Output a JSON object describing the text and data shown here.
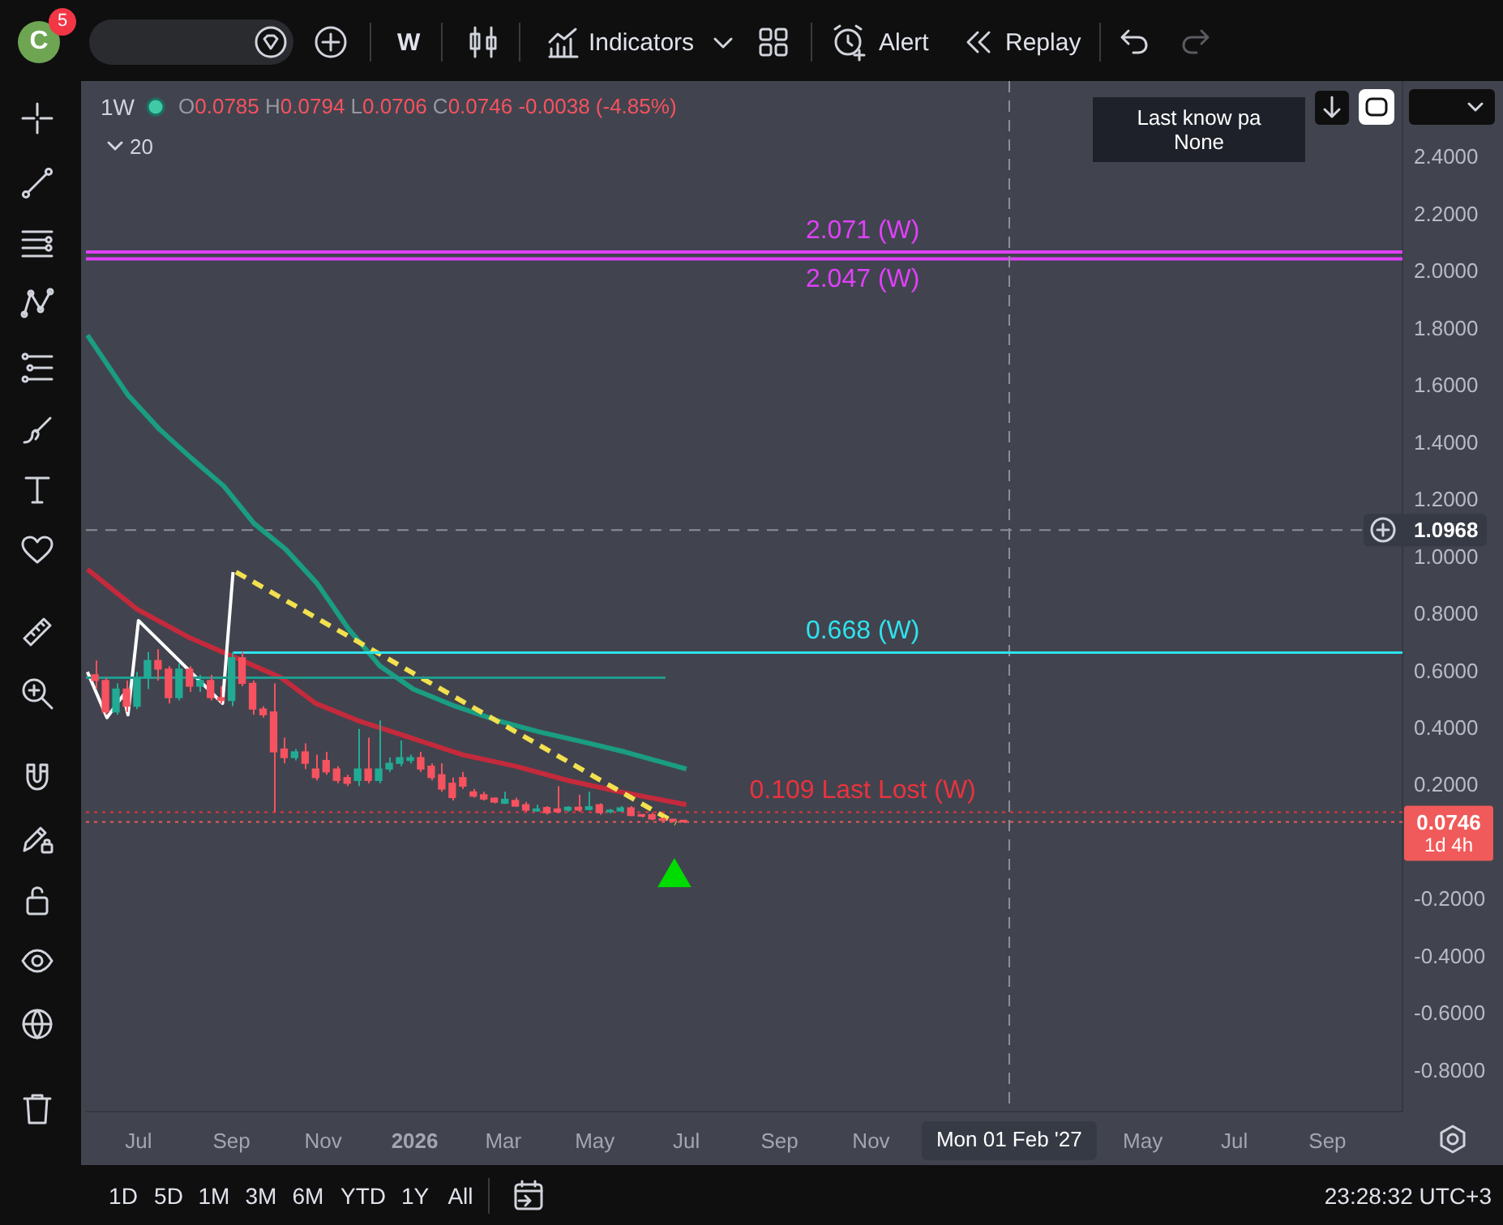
{
  "chart_data": {
    "type": "candlestick",
    "x": [
      "2025-06-02",
      "2025-06-09",
      "2025-06-16",
      "2025-06-23",
      "2025-06-30",
      "2025-07-07",
      "2025-07-14",
      "2025-07-21",
      "2025-07-28",
      "2025-08-04",
      "2025-08-11",
      "2025-08-18",
      "2025-08-25",
      "2025-09-01",
      "2025-09-08",
      "2025-09-15",
      "2025-09-22",
      "2025-09-29",
      "2025-10-06",
      "2025-10-13",
      "2025-10-20",
      "2025-10-27",
      "2025-11-03",
      "2025-11-10",
      "2025-11-17",
      "2025-11-24",
      "2025-12-01",
      "2025-12-08",
      "2025-12-15",
      "2025-12-22",
      "2025-12-29",
      "2026-01-05",
      "2026-01-12",
      "2026-01-19",
      "2026-01-26",
      "2026-02-02",
      "2026-02-09",
      "2026-02-16",
      "2026-02-23",
      "2026-03-02",
      "2026-03-09",
      "2026-03-16",
      "2026-03-23",
      "2026-03-30",
      "2026-04-06",
      "2026-04-13",
      "2026-04-20",
      "2026-04-27",
      "2026-05-04",
      "2026-05-11",
      "2026-05-18",
      "2026-05-25",
      "2026-06-01",
      "2026-06-08",
      "2026-06-15",
      "2026-06-22",
      "2026-06-29"
    ],
    "ohlc": [
      [
        0.59,
        0.64,
        0.54,
        0.57
      ],
      [
        0.57,
        0.58,
        0.45,
        0.46
      ],
      [
        0.46,
        0.56,
        0.45,
        0.54
      ],
      [
        0.54,
        0.57,
        0.46,
        0.48
      ],
      [
        0.48,
        0.6,
        0.47,
        0.58
      ],
      [
        0.58,
        0.67,
        0.54,
        0.64
      ],
      [
        0.64,
        0.68,
        0.57,
        0.61
      ],
      [
        0.61,
        0.62,
        0.49,
        0.51
      ],
      [
        0.51,
        0.63,
        0.5,
        0.61
      ],
      [
        0.61,
        0.62,
        0.53,
        0.55
      ],
      [
        0.55,
        0.59,
        0.53,
        0.57
      ],
      [
        0.57,
        0.59,
        0.5,
        0.51
      ],
      [
        0.51,
        0.55,
        0.49,
        0.5
      ],
      [
        0.5,
        0.67,
        0.48,
        0.65
      ],
      [
        0.65,
        0.67,
        0.55,
        0.56
      ],
      [
        0.56,
        0.57,
        0.45,
        0.47
      ],
      [
        0.47,
        0.48,
        0.44,
        0.45
      ],
      [
        0.46,
        0.56,
        0.11,
        0.32
      ],
      [
        0.33,
        0.37,
        0.28,
        0.3
      ],
      [
        0.3,
        0.33,
        0.29,
        0.32
      ],
      [
        0.32,
        0.35,
        0.26,
        0.28
      ],
      [
        0.26,
        0.31,
        0.22,
        0.23
      ],
      [
        0.29,
        0.32,
        0.24,
        0.25
      ],
      [
        0.26,
        0.27,
        0.21,
        0.22
      ],
      [
        0.23,
        0.24,
        0.2,
        0.21
      ],
      [
        0.22,
        0.4,
        0.2,
        0.26
      ],
      [
        0.26,
        0.37,
        0.21,
        0.22
      ],
      [
        0.22,
        0.43,
        0.21,
        0.26
      ],
      [
        0.26,
        0.3,
        0.25,
        0.28
      ],
      [
        0.28,
        0.36,
        0.27,
        0.3
      ],
      [
        0.29,
        0.31,
        0.28,
        0.3
      ],
      [
        0.3,
        0.32,
        0.25,
        0.26
      ],
      [
        0.27,
        0.28,
        0.22,
        0.23
      ],
      [
        0.24,
        0.28,
        0.18,
        0.19
      ],
      [
        0.21,
        0.23,
        0.15,
        0.16
      ],
      [
        0.23,
        0.25,
        0.19,
        0.2
      ],
      [
        0.18,
        0.19,
        0.16,
        0.165
      ],
      [
        0.17,
        0.18,
        0.15,
        0.155
      ],
      [
        0.158,
        0.16,
        0.14,
        0.144
      ],
      [
        0.14,
        0.18,
        0.138,
        0.154
      ],
      [
        0.15,
        0.16,
        0.128,
        0.13
      ],
      [
        0.135,
        0.145,
        0.11,
        0.116
      ],
      [
        0.113,
        0.135,
        0.11,
        0.12
      ],
      [
        0.125,
        0.13,
        0.1,
        0.107
      ],
      [
        0.12,
        0.2,
        0.105,
        0.11
      ],
      [
        0.116,
        0.13,
        0.11,
        0.126
      ],
      [
        0.126,
        0.17,
        0.11,
        0.116
      ],
      [
        0.118,
        0.18,
        0.115,
        0.128
      ],
      [
        0.135,
        0.14,
        0.1,
        0.107
      ],
      [
        0.11,
        0.12,
        0.105,
        0.115
      ],
      [
        0.113,
        0.13,
        0.11,
        0.124
      ],
      [
        0.124,
        0.13,
        0.095,
        0.097
      ],
      [
        0.097,
        0.1,
        0.09,
        0.095
      ],
      [
        0.1,
        0.107,
        0.08,
        0.085
      ],
      [
        0.085,
        0.09,
        0.075,
        0.08
      ],
      [
        0.08,
        0.086,
        0.074,
        0.0784
      ],
      [
        0.0785,
        0.0794,
        0.0706,
        0.0746
      ]
    ],
    "colors": [
      "#f7525f",
      "#f7525f",
      "#22ab94",
      "#f7525f",
      "#22ab94",
      "#22ab94",
      "#f7525f",
      "#f7525f",
      "#22ab94",
      "#f7525f",
      "#22ab94",
      "#f7525f",
      "#f7525f",
      "#22ab94",
      "#f7525f",
      "#f7525f",
      "#f7525f",
      "#f7525f",
      "#f7525f",
      "#22ab94",
      "#f7525f",
      "#f7525f",
      "#f7525f",
      "#f7525f",
      "#f7525f",
      "#22ab94",
      "#f7525f",
      "#22ab94",
      "#22ab94",
      "#22ab94",
      "#22ab94",
      "#f7525f",
      "#f7525f",
      "#f7525f",
      "#f7525f",
      "#f7525f",
      "#f7525f",
      "#f7525f",
      "#f7525f",
      "#22ab94",
      "#f7525f",
      "#f7525f",
      "#22ab94",
      "#f7525f",
      "#f7525f",
      "#22ab94",
      "#f7525f",
      "#22ab94",
      "#f7525f",
      "#22ab94",
      "#22ab94",
      "#f7525f",
      "#f7525f",
      "#f7525f",
      "#f7525f",
      "#f7525f",
      "#f7525f"
    ],
    "series": [
      {
        "type": "line",
        "color": "#1a9d82",
        "x": [
          "2025-05-28",
          "2025-06-24",
          "2025-07-15",
          "2025-08-05",
          "2025-08-27",
          "2025-09-16",
          "2025-10-07",
          "2025-10-28",
          "2025-11-18",
          "2025-12-09",
          "2025-12-31",
          "2026-01-28",
          "2026-02-25",
          "2026-03-25",
          "2026-04-23",
          "2026-05-21",
          "2026-07-01"
        ],
        "values": [
          1.78,
          1.57,
          1.45,
          1.35,
          1.25,
          1.12,
          1.03,
          0.91,
          0.75,
          0.62,
          0.54,
          0.48,
          0.43,
          0.39,
          0.355,
          0.32,
          0.26
        ]
      },
      {
        "type": "line",
        "color": "#c42a3c",
        "x": [
          "2025-05-28",
          "2025-06-30",
          "2025-08-04",
          "2025-09-08",
          "2025-10-04",
          "2025-10-27",
          "2025-11-24",
          "2025-12-29",
          "2026-02-02",
          "2026-03-09",
          "2026-04-13",
          "2026-05-18",
          "2026-07-01"
        ],
        "values": [
          0.96,
          0.82,
          0.72,
          0.64,
          0.58,
          0.49,
          0.43,
          0.37,
          0.31,
          0.27,
          0.22,
          0.18,
          0.135
        ]
      },
      {
        "type": "line",
        "color": "#ffffff",
        "x": [
          "2025-05-28",
          "2025-06-10",
          "2025-06-21",
          "2025-06-24",
          "2025-07-01",
          "2025-08-26",
          "2025-09-02"
        ],
        "values": [
          0.6,
          0.44,
          0.52,
          0.45,
          0.78,
          0.49,
          0.95
        ]
      },
      {
        "type": "line",
        "color": "#f3e04e",
        "line_style": "dashed",
        "x": [
          "2025-09-04",
          "2026-06-24"
        ],
        "values": [
          0.95,
          0.07
        ]
      },
      {
        "type": "line",
        "name": "0.668 (W)",
        "color": "#2fe3ee",
        "x": [
          "2025-09-02",
          "2027-10-21"
        ],
        "values": [
          0.668,
          0.668
        ]
      },
      {
        "type": "line",
        "color": "#1f9c90",
        "x": [
          "2025-05-27",
          "2026-06-17"
        ],
        "values": [
          0.58,
          0.58
        ]
      },
      {
        "type": "scatter",
        "color": "#00dc00",
        "marker": "triangle",
        "x": [
          "2026-06-23"
        ],
        "values": [
          -0.12
        ]
      }
    ],
    "xlim": [
      "2025-05-27",
      "2027-10-21"
    ],
    "xticks": [
      {
        "value": "2025-07-01",
        "label": "Jul"
      },
      {
        "value": "2025-09-01",
        "label": "Sep"
      },
      {
        "value": "2025-11-01",
        "label": "Nov"
      },
      {
        "value": "2026-01-01",
        "label": "2026"
      },
      {
        "value": "2026-03-01",
        "label": "Mar"
      },
      {
        "value": "2026-05-01",
        "label": "May"
      },
      {
        "value": "2026-07-01",
        "label": "Jul"
      },
      {
        "value": "2026-09-01",
        "label": "Sep"
      },
      {
        "value": "2026-11-01",
        "label": "Nov"
      },
      {
        "value": "2027-05-01",
        "label": "May"
      },
      {
        "value": "2027-07-01",
        "label": "Jul"
      },
      {
        "value": "2027-09-01",
        "label": "Sep"
      }
    ],
    "ylim": [
      -0.94,
      2.67
    ],
    "yticks": [
      {
        "value": 2.4,
        "label": "2.4000"
      },
      {
        "value": 2.2,
        "label": "2.2000"
      },
      {
        "value": 2,
        "label": "2.0000"
      },
      {
        "value": 1.8,
        "label": "1.8000"
      },
      {
        "value": 1.6,
        "label": "1.6000"
      },
      {
        "value": 1.4,
        "label": "1.4000"
      },
      {
        "value": 1.2,
        "label": "1.2000"
      },
      {
        "value": 1,
        "label": "1.0000"
      },
      {
        "value": 0.8,
        "label": "0.8000"
      },
      {
        "value": 0.6,
        "label": "0.6000"
      },
      {
        "value": 0.4,
        "label": "0.4000"
      },
      {
        "value": 0.2,
        "label": "0.2000"
      },
      {
        "value": -0.2,
        "label": "-0.2000"
      },
      {
        "value": -0.4,
        "label": "-0.4000"
      },
      {
        "value": -0.6,
        "label": "-0.6000"
      },
      {
        "value": -0.8,
        "label": "-0.8000"
      }
    ],
    "ref_lines": [
      {
        "axis": "y",
        "value": 2.071,
        "label": "2.071 (W)",
        "color": "#e040fb"
      },
      {
        "axis": "y",
        "value": 2.047,
        "label": "2.047 (W)",
        "color": "#e040fb"
      },
      {
        "axis": "y",
        "value": 0.109,
        "label": "0.109 Last Lost (W)",
        "color": "#e8333f",
        "line_style": "dotted"
      },
      {
        "axis": "y",
        "value": 0.0746,
        "label": "0.0746",
        "color": "#f05a5a",
        "line_style": "dotted"
      },
      {
        "axis": "y",
        "value": 1.0968,
        "label": "1.0968",
        "color": "#8c8f99",
        "line_style": "dashed"
      },
      {
        "axis": "x",
        "value": "2027-02-01",
        "label": "Mon 01 Feb '27",
        "color": "#8c8f99",
        "line_style": "dashed"
      }
    ],
    "annotations": [
      "C",
      "5",
      "W",
      "Indicators",
      "Alert",
      "Replay",
      "1W",
      "O0.0785 H0.0794 L0.0706 C0.0746 -0.0038 (-4.85%)",
      "20",
      "Last know pa",
      "None",
      "1d 4h",
      "1D",
      "5D",
      "1M",
      "3M",
      "6M",
      "YTD",
      "1Y",
      "All",
      "23:28:32 UTC+3"
    ]
  }
}
